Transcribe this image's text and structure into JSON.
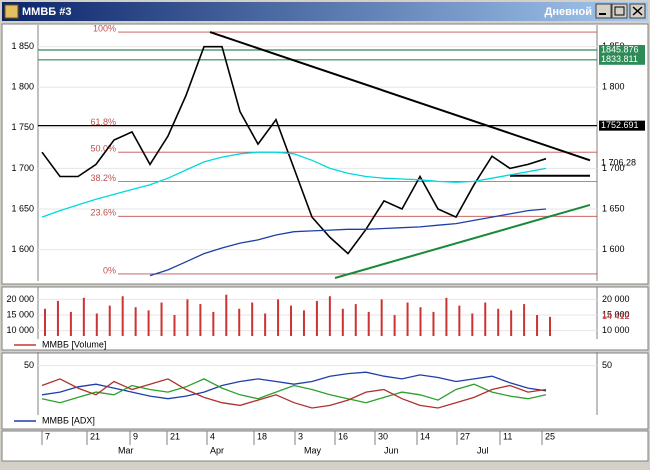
{
  "window": {
    "title": "ММВБ #3",
    "timeframe": "Дневной"
  },
  "chart_data": [
    {
      "type": "line",
      "ylim": [
        1565,
        1873
      ],
      "yticks": [
        {
          "value": 1600,
          "label": "1 600"
        },
        {
          "value": 1650,
          "label": "1 650"
        },
        {
          "value": 1700,
          "label": "1 700"
        },
        {
          "value": 1750,
          "label": "1 750"
        },
        {
          "value": 1800,
          "label": "1 800"
        },
        {
          "value": 1850,
          "label": "1 850"
        }
      ],
      "series": [
        {
          "color": "#000000",
          "values": [
            1720,
            1690,
            1690,
            1705,
            1735,
            1745,
            1705,
            1740,
            1790,
            1850,
            1850,
            1770,
            1730,
            1760,
            1700,
            1640,
            1615,
            1595,
            1625,
            1660,
            1650,
            1690,
            1650,
            1640,
            1680,
            1715,
            1700,
            1705,
            1712
          ]
        },
        {
          "color": "#00d8e0",
          "values": [
            1640,
            1648,
            1655,
            1662,
            1668,
            1674,
            1680,
            1688,
            1698,
            1708,
            1714,
            1718,
            1720,
            1720,
            1718,
            1710,
            1700,
            1694,
            1690,
            1688,
            1687,
            1686,
            1684,
            1683,
            1684,
            1688,
            1692,
            1696,
            1700
          ]
        },
        {
          "color": "#1f3fa8",
          "values": [
            null,
            null,
            null,
            null,
            null,
            null,
            1568,
            1575,
            1585,
            1595,
            1602,
            1608,
            1612,
            1618,
            1622,
            1623,
            1624,
            1625,
            1625,
            1626,
            1627,
            1628,
            1630,
            1632,
            1636,
            1640,
            1644,
            1648,
            1650
          ]
        }
      ],
      "levels": [
        {
          "value": 1845.876,
          "label": "1845.876",
          "color": "#2e8b57"
        },
        {
          "value": 1833.811,
          "label": "1833.811",
          "color": "#2e8b57"
        },
        {
          "value": 1752.691,
          "label": "1752.691",
          "color": "#000000"
        }
      ],
      "last_label": {
        "value": 1706.28,
        "label": "1 706,28"
      },
      "fib_levels": [
        {
          "value": 1868,
          "label": "100%"
        },
        {
          "value": 1753,
          "label": "61.8%"
        },
        {
          "value": 1720,
          "label": "50.0%"
        },
        {
          "value": 1684,
          "label": "38.2%"
        },
        {
          "value": 1641,
          "label": "23.6%"
        },
        {
          "value": 1570,
          "label": "0%"
        }
      ],
      "trend_lines": [
        {
          "color": "#000000",
          "values": [
            1868,
            1710
          ]
        },
        {
          "color": "#1a8a3a",
          "values": [
            1565,
            1655
          ]
        },
        {
          "color": "#000000",
          "values": [
            1691,
            1691
          ]
        }
      ]
    },
    {
      "type": "bar",
      "legend": "ММВБ [Volume]",
      "color": "#cc3333",
      "ylim": [
        8300,
        23000
      ],
      "yticks": [
        {
          "value": 10000,
          "label": "10 000"
        },
        {
          "value": 15000,
          "label": "15 000"
        },
        {
          "value": 20000,
          "label": "20 000"
        }
      ],
      "values": [
        17000,
        19500,
        16000,
        20500,
        15500,
        18000,
        21000,
        17500,
        16500,
        19000,
        15000,
        20000,
        18500,
        16000,
        21500,
        17000,
        19000,
        15500,
        20000,
        18000,
        16500,
        19500,
        21000,
        17000,
        18500,
        16000,
        20000,
        15000,
        19000,
        17500,
        16000,
        20500,
        18000,
        15500,
        19000,
        17000,
        16500,
        18500,
        15000,
        14412
      ],
      "last_label": "14 412"
    },
    {
      "type": "line",
      "ylim": [
        15,
        58
      ],
      "yticks": [
        50
      ],
      "series": [
        {
          "name": "ММВБ [ADX]",
          "color": "#1f3fa8",
          "values": [
            28,
            30,
            34,
            36,
            33,
            30,
            27,
            25,
            27,
            30,
            35,
            38,
            40,
            38,
            36,
            38,
            42,
            44,
            45,
            42,
            40,
            43,
            41,
            38,
            40,
            42,
            37,
            33,
            31
          ]
        },
        {
          "color": "#2ca02c",
          "values": [
            25,
            22,
            26,
            30,
            28,
            35,
            32,
            30,
            34,
            40,
            33,
            28,
            25,
            30,
            35,
            32,
            28,
            25,
            22,
            26,
            30,
            28,
            24,
            32,
            36,
            30,
            27,
            25,
            28
          ]
        },
        {
          "color": "#b03030",
          "values": [
            35,
            40,
            33,
            28,
            38,
            32,
            36,
            40,
            32,
            26,
            22,
            20,
            24,
            28,
            22,
            18,
            20,
            24,
            30,
            32,
            25,
            20,
            18,
            22,
            26,
            32,
            35,
            30,
            32
          ]
        }
      ]
    }
  ],
  "x_axis": {
    "days": [
      "7",
      "21",
      "9",
      "21",
      "4",
      "18",
      "3",
      "16",
      "30",
      "14",
      "27",
      "11",
      "25"
    ],
    "months": [
      "Mar",
      "Apr",
      "May",
      "Jun",
      "Jul"
    ]
  }
}
